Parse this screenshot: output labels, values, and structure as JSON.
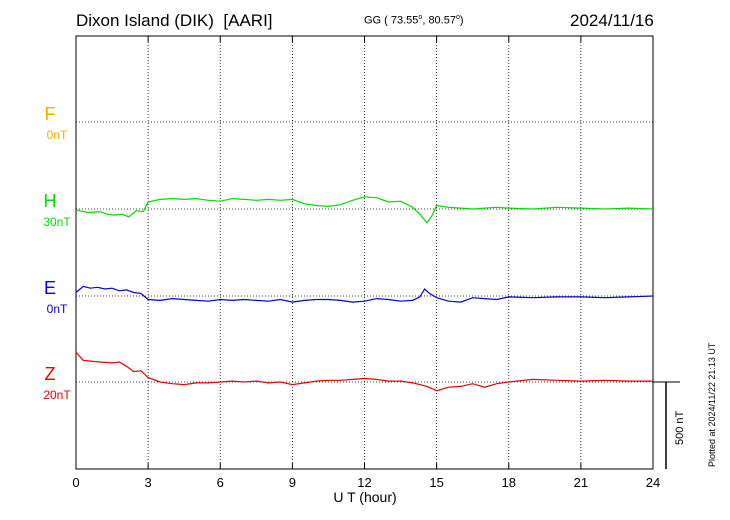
{
  "header": {
    "station": "Dixon Island (DIK)",
    "institute": "[AARI]",
    "coords_prefix": "GG ( 73.55",
    "coords_mid": ",  80.57",
    "coords_suffix": ")",
    "date": "2024/11/16"
  },
  "plotted_note": "Plotted at 2024/11/22 21:13 UT",
  "chart_data": {
    "type": "line",
    "xlabel": "U T (hour)",
    "xlim": [
      0,
      24
    ],
    "xticks": [
      "0",
      "3",
      "6",
      "9",
      "12",
      "15",
      "18",
      "21",
      "24"
    ],
    "grid": true,
    "scale_bar_label": "500 nT",
    "scale_bar_nT": 500,
    "series": [
      {
        "name": "F",
        "baseline": "0nT",
        "color": "#ffaa00",
        "values": []
      },
      {
        "name": "H",
        "baseline": "30nT",
        "color": "#00dd00",
        "x": [
          0,
          0.5,
          1,
          1.3,
          1.6,
          1.9,
          2.2,
          2.5,
          2.8,
          3,
          3.5,
          4,
          4.5,
          5,
          5.5,
          6,
          6.5,
          7,
          7.5,
          8,
          8.5,
          9,
          9.5,
          10,
          10.5,
          11,
          11.5,
          12,
          12.5,
          13,
          13.5,
          14,
          14.3,
          14.6,
          14.8,
          15,
          15.5,
          16,
          16.5,
          17,
          17.5,
          18,
          19,
          20,
          21,
          22,
          23,
          24
        ],
        "values": [
          -5,
          -20,
          -15,
          -30,
          -35,
          -30,
          -45,
          -10,
          -15,
          40,
          55,
          60,
          55,
          60,
          50,
          45,
          60,
          55,
          50,
          55,
          50,
          55,
          30,
          20,
          15,
          25,
          50,
          70,
          65,
          40,
          45,
          10,
          -30,
          -80,
          -40,
          20,
          10,
          5,
          0,
          5,
          10,
          5,
          0,
          10,
          5,
          0,
          5,
          0
        ]
      },
      {
        "name": "E",
        "baseline": "0nT",
        "color": "#0000dd",
        "x": [
          0,
          0.3,
          0.6,
          0.9,
          1.2,
          1.5,
          1.8,
          2.1,
          2.4,
          2.7,
          3,
          3.5,
          4,
          4.5,
          5,
          5.5,
          6,
          6.5,
          7,
          7.5,
          8,
          8.5,
          9,
          9.5,
          10,
          10.5,
          11,
          11.5,
          12,
          12.5,
          13,
          13.5,
          14,
          14.3,
          14.5,
          14.7,
          15,
          15.5,
          16,
          16.5,
          17,
          17.5,
          18,
          19,
          20,
          21,
          22,
          23,
          24
        ],
        "values": [
          20,
          55,
          45,
          50,
          40,
          45,
          30,
          35,
          20,
          15,
          -20,
          -25,
          -15,
          -20,
          -25,
          -30,
          -20,
          -25,
          -20,
          -25,
          -30,
          -20,
          -35,
          -25,
          -20,
          -20,
          -25,
          -35,
          -30,
          -15,
          -20,
          -30,
          -25,
          -5,
          40,
          15,
          -10,
          -30,
          -35,
          -10,
          -15,
          -20,
          -5,
          -10,
          -5,
          -5,
          -10,
          -5,
          0
        ]
      },
      {
        "name": "Z",
        "baseline": "20nT",
        "color": "#ee0000",
        "x": [
          0,
          0.3,
          0.6,
          1,
          1.5,
          1.8,
          2.1,
          2.4,
          2.7,
          3,
          3.5,
          4,
          4.5,
          5,
          5.5,
          6,
          6.5,
          7,
          7.5,
          8,
          8.5,
          9,
          9.5,
          10,
          10.5,
          11,
          11.5,
          12,
          12.5,
          13,
          13.5,
          14,
          14.3,
          14.6,
          15,
          15.5,
          16,
          16.5,
          17,
          17.5,
          18,
          19,
          20,
          21,
          22,
          23,
          24
        ],
        "values": [
          170,
          125,
          120,
          115,
          110,
          115,
          90,
          60,
          65,
          25,
          0,
          -10,
          -15,
          -5,
          -5,
          0,
          5,
          0,
          5,
          -5,
          0,
          -15,
          -5,
          5,
          10,
          10,
          15,
          20,
          15,
          5,
          5,
          -5,
          -15,
          -25,
          -50,
          -30,
          -25,
          -10,
          -30,
          -10,
          0,
          15,
          10,
          5,
          10,
          5,
          5
        ]
      }
    ]
  }
}
